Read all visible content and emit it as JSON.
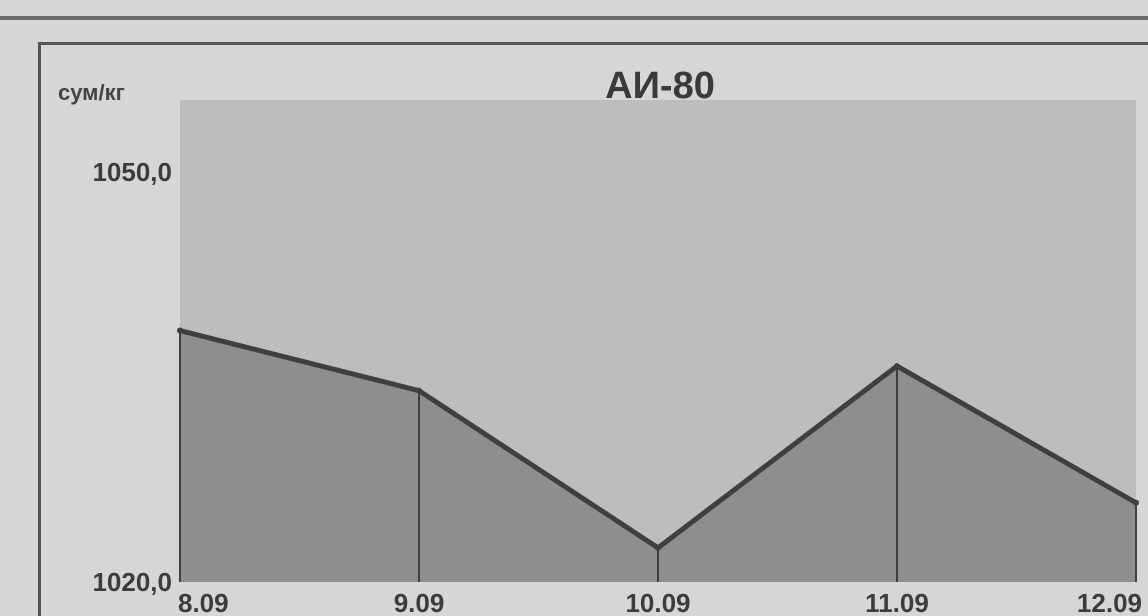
{
  "chart_data": {
    "type": "area",
    "title": "АИ-80",
    "ylabel": "сум/кг",
    "xlabel": "",
    "categories": [
      "8.09",
      "9.09",
      "10.09",
      "11.09",
      "12.09"
    ],
    "values": [
      1038.4,
      1034.0,
      1022.5,
      1035.8,
      1025.8
    ],
    "ylim": [
      1020.0,
      1050.0
    ],
    "y_ticks": [
      "1050,0",
      "1020,0"
    ],
    "grid": false,
    "colors": {
      "plot_background": "#bdbdbd",
      "area_fill": "#8e8e8e",
      "line": "#3f3f3f"
    }
  }
}
